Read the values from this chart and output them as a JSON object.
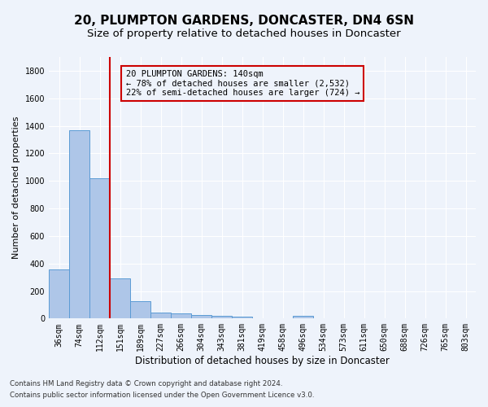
{
  "title": "20, PLUMPTON GARDENS, DONCASTER, DN4 6SN",
  "subtitle": "Size of property relative to detached houses in Doncaster",
  "xlabel": "Distribution of detached houses by size in Doncaster",
  "ylabel": "Number of detached properties",
  "footnote1": "Contains HM Land Registry data © Crown copyright and database right 2024.",
  "footnote2": "Contains public sector information licensed under the Open Government Licence v3.0.",
  "bin_labels": [
    "36sqm",
    "74sqm",
    "112sqm",
    "151sqm",
    "189sqm",
    "227sqm",
    "266sqm",
    "304sqm",
    "343sqm",
    "381sqm",
    "419sqm",
    "458sqm",
    "496sqm",
    "534sqm",
    "573sqm",
    "611sqm",
    "650sqm",
    "688sqm",
    "726sqm",
    "765sqm",
    "803sqm"
  ],
  "bar_values": [
    355,
    1365,
    1020,
    290,
    125,
    42,
    35,
    25,
    18,
    15,
    0,
    0,
    18,
    0,
    0,
    0,
    0,
    0,
    0,
    0,
    0
  ],
  "bar_color": "#aec6e8",
  "bar_edge_color": "#5b9bd5",
  "vline_color": "#cc0000",
  "annotation_box_text": "20 PLUMPTON GARDENS: 140sqm\n← 78% of detached houses are smaller (2,532)\n22% of semi-detached houses are larger (724) →",
  "annotation_box_color": "#cc0000",
  "ylim": [
    0,
    1900
  ],
  "yticks": [
    0,
    200,
    400,
    600,
    800,
    1000,
    1200,
    1400,
    1600,
    1800
  ],
  "bg_color": "#eef3fb",
  "grid_color": "#ffffff",
  "title_fontsize": 11,
  "subtitle_fontsize": 9.5,
  "axis_label_fontsize": 8.5,
  "ylabel_fontsize": 8,
  "tick_fontsize": 7,
  "annotation_fontsize": 7.5,
  "footnote_fontsize": 6.2
}
